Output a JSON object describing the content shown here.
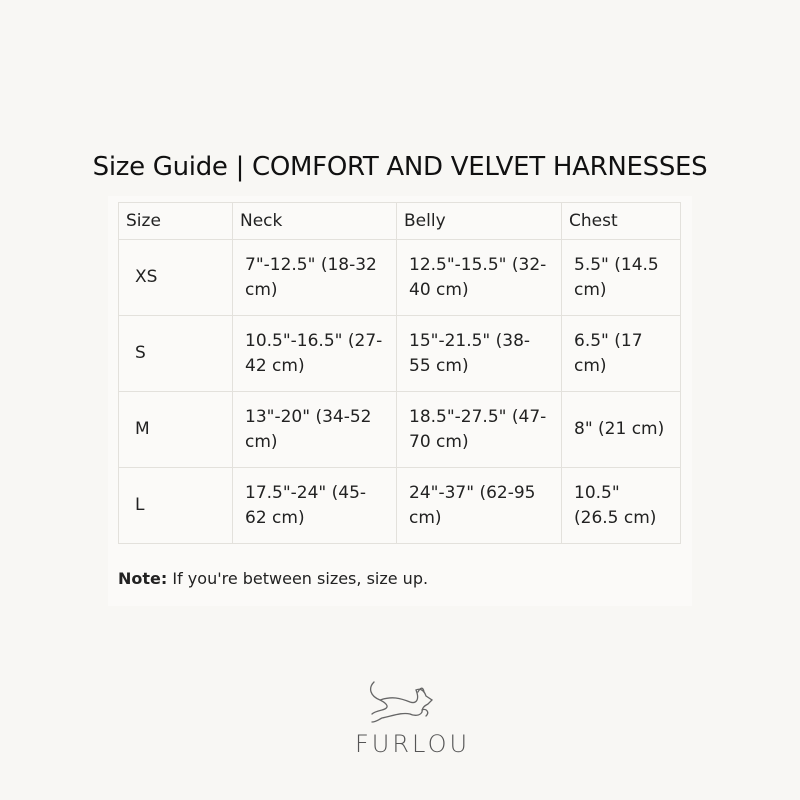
{
  "title": "Size Guide | COMFORT AND VELVET HARNESSES",
  "table": {
    "headers": [
      "Size",
      "Neck",
      "Belly",
      "Chest"
    ],
    "rows": [
      [
        "XS",
        "7\"-12.5\" (18-32 cm)",
        "12.5\"-15.5\" (32-40 cm)",
        "5.5\" (14.5 cm)"
      ],
      [
        "S",
        "10.5\"-16.5\" (27-42 cm)",
        "15\"-21.5\" (38-55 cm)",
        "6.5\" (17 cm)"
      ],
      [
        "M",
        "13\"-20\" (34-52 cm)",
        "18.5\"-27.5\" (47-70 cm)",
        "8\" (21 cm)"
      ],
      [
        "L",
        "17.5\"-24\" (45-62 cm)",
        "24\"-37\" (62-95 cm)",
        "10.5\" (26.5 cm)"
      ]
    ]
  },
  "note": {
    "label": "Note:",
    "text": " If you're between sizes, size up."
  },
  "logo": {
    "brand": "FURLOU",
    "icon": "running-dog-icon"
  }
}
